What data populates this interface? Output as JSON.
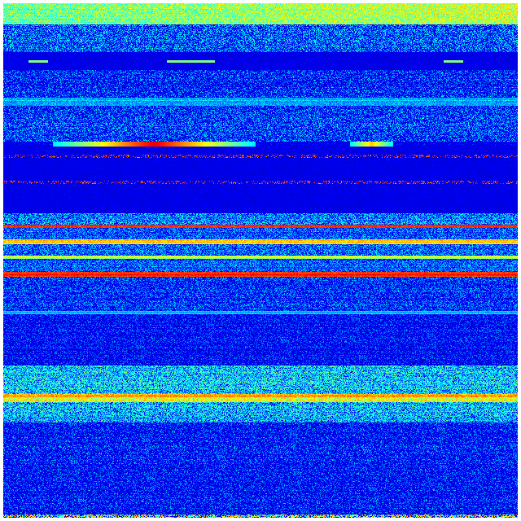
{
  "figure": {
    "kind": "spectrogram-heatmap",
    "colormap": [
      "#00008f",
      "#0000ff",
      "#0080ff",
      "#00ffff",
      "#80ff80",
      "#ffff00",
      "#ff8000",
      "#ff0000",
      "#800000"
    ],
    "background": "#ffffff",
    "axes_visible": false
  }
}
